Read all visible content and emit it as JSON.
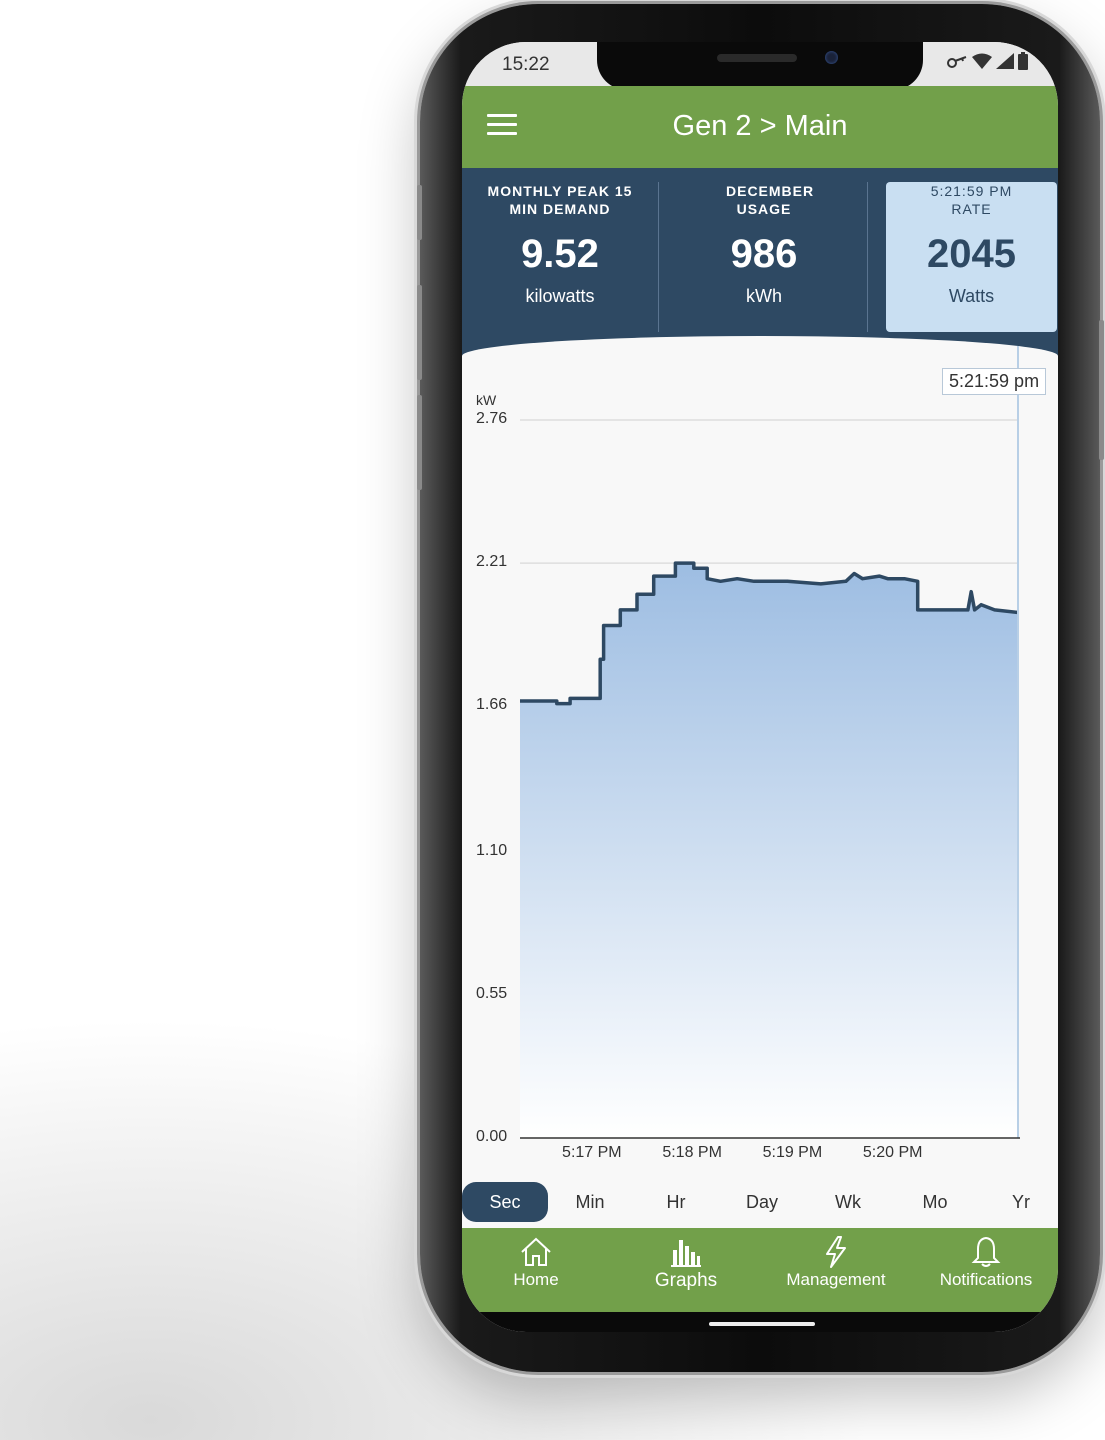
{
  "status_bar": {
    "time": "15:22"
  },
  "app_bar": {
    "title": "Gen 2 > Main"
  },
  "stats": [
    {
      "label": "MONTHLY PEAK 15 MIN DEMAND",
      "value": "9.52",
      "unit": "kilowatts"
    },
    {
      "label": "DECEMBER USAGE",
      "value": "986",
      "unit": "kWh"
    },
    {
      "label": "5:21:59 PM RATE",
      "value": "2045",
      "unit": "Watts"
    }
  ],
  "chart": {
    "cursor_label": "5:21:59 pm",
    "ylabel": "kW",
    "y_ticks": [
      "2.76",
      "2.21",
      "1.66",
      "1.10",
      "0.55",
      "0.00"
    ],
    "x_ticks": [
      "5:17 PM",
      "5:18 PM",
      "5:19 PM",
      "5:20 PM"
    ]
  },
  "chart_data": {
    "type": "area",
    "ylabel": "kW",
    "ylim": [
      0,
      2.76
    ],
    "y_ticks": [
      0.0,
      0.55,
      1.1,
      1.66,
      2.21,
      2.76
    ],
    "x_ticks": [
      "5:17 PM",
      "5:18 PM",
      "5:19 PM",
      "5:20 PM"
    ],
    "xlim_seconds": [
      0,
      298
    ],
    "series": [
      {
        "x_seconds": [
          0,
          22,
          22,
          30,
          30,
          48,
          48,
          50,
          50,
          60,
          60,
          70,
          70,
          80,
          80,
          93,
          93,
          104,
          104,
          112,
          112,
          120,
          130,
          140,
          160,
          180,
          195,
          200,
          205,
          215,
          220,
          230,
          238,
          238,
          250,
          268,
          270,
          272,
          276,
          284,
          298
        ],
        "y_kw": [
          1.68,
          1.68,
          1.67,
          1.67,
          1.69,
          1.69,
          1.84,
          1.84,
          1.97,
          1.97,
          2.03,
          2.03,
          2.09,
          2.09,
          2.16,
          2.16,
          2.21,
          2.21,
          2.19,
          2.19,
          2.15,
          2.14,
          2.15,
          2.14,
          2.14,
          2.13,
          2.14,
          2.17,
          2.15,
          2.16,
          2.15,
          2.15,
          2.14,
          2.03,
          2.03,
          2.03,
          2.1,
          2.03,
          2.05,
          2.03,
          2.02
        ]
      }
    ],
    "grid": true,
    "cursor_time": "5:21:59 pm"
  },
  "ranges": [
    "Sec",
    "Min",
    "Hr",
    "Day",
    "Wk",
    "Mo",
    "Yr"
  ],
  "active_range": "Sec",
  "bottom_nav": [
    {
      "label": "Home",
      "icon": "home-icon"
    },
    {
      "label": "Graphs",
      "icon": "bar-chart-icon"
    },
    {
      "label": "Management",
      "icon": "lightning-icon"
    },
    {
      "label": "Notifications",
      "icon": "bell-icon"
    }
  ],
  "colors": {
    "green": "#72a04a",
    "navy": "#2e4963",
    "active_tile": "#c9dff2",
    "line": "#2e4963",
    "area_top": "#9dbde2",
    "area_bottom": "#ffffff"
  }
}
